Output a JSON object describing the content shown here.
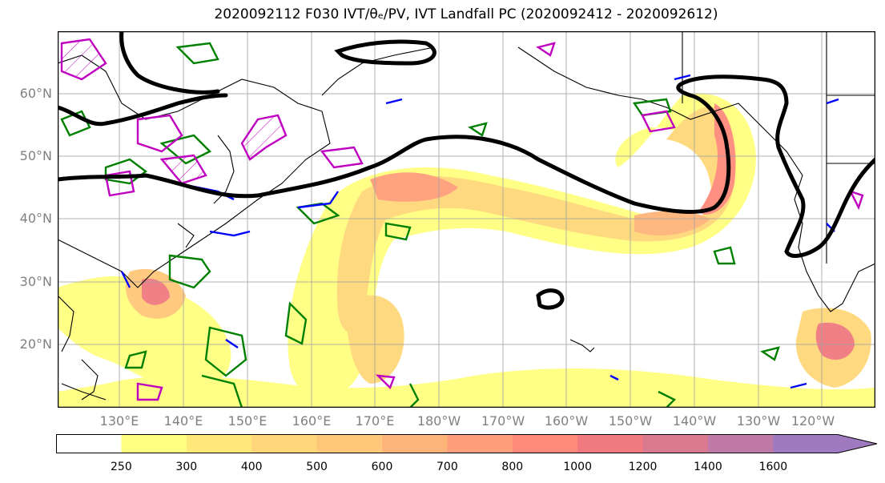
{
  "title": "2020092112 F030 IVT/θₑ/PV, IVT Landfall PC (2020092412 - 2020092612)",
  "lat_labels": [
    "60°N",
    "50°N",
    "40°N",
    "30°N",
    "20°N"
  ],
  "lon_labels": [
    "130°E",
    "140°E",
    "150°E",
    "160°E",
    "170°E",
    "180°W",
    "170°W",
    "160°W",
    "150°W",
    "140°W",
    "130°W",
    "120°W"
  ],
  "colorbar": {
    "ticks": [
      "250",
      "300",
      "400",
      "500",
      "600",
      "700",
      "800",
      "1000",
      "1200",
      "1400",
      "1600"
    ],
    "colors": [
      "#ffffff",
      "#ffff80",
      "#ffe87a",
      "#ffd77a",
      "#ffc77a",
      "#ffb47a",
      "#ff9e7a",
      "#ff8a7a",
      "#f07a80",
      "#d97a90",
      "#c07aa8",
      "#a07ac0"
    ]
  },
  "colors": {
    "ivt_contour": "#000000",
    "theta_e": "#008000",
    "pv_positive": "#c000c0",
    "pv_negative": "#0000ff",
    "grid": "#a0a0a0",
    "axis_label": "#808080"
  }
}
